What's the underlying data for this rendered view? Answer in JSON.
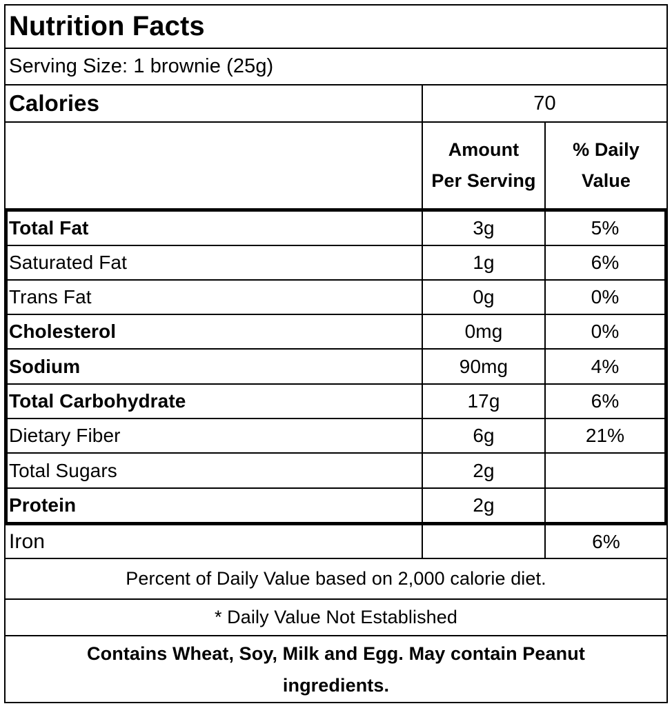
{
  "title": "Nutrition Facts",
  "serving_size": "Serving Size: 1 brownie (25g)",
  "calories": {
    "label": "Calories",
    "value": "70"
  },
  "columns": {
    "amount_line1": "Amount",
    "amount_line2": "Per Serving",
    "daily_line1": "% Daily",
    "daily_line2": "Value"
  },
  "nutrients": [
    {
      "name": "Total Fat",
      "bold": true,
      "amount": "3g",
      "daily": "5%"
    },
    {
      "name": "Saturated Fat",
      "bold": false,
      "amount": "1g",
      "daily": "6%"
    },
    {
      "name": "Trans Fat",
      "bold": false,
      "amount": "0g",
      "daily": "0%"
    },
    {
      "name": "Cholesterol",
      "bold": true,
      "amount": "0mg",
      "daily": "0%"
    },
    {
      "name": "Sodium",
      "bold": true,
      "amount": "90mg",
      "daily": "4%"
    },
    {
      "name": "Total Carbohydrate",
      "bold": true,
      "amount": "17g",
      "daily": "6%"
    },
    {
      "name": "Dietary Fiber",
      "bold": false,
      "amount": "6g",
      "daily": "21%"
    },
    {
      "name": "Total Sugars",
      "bold": false,
      "amount": "2g",
      "daily": ""
    },
    {
      "name": "Protein",
      "bold": true,
      "amount": "2g",
      "daily": ""
    }
  ],
  "iron": {
    "name": "Iron",
    "amount": "",
    "daily": "6%"
  },
  "footnote_daily_value": "Percent of Daily Value based on 2,000 calorie diet.",
  "footnote_not_established": "* Daily Value Not Established",
  "allergens": "Contains Wheat, Soy, Milk and Egg.  May contain Peanut ingredients."
}
